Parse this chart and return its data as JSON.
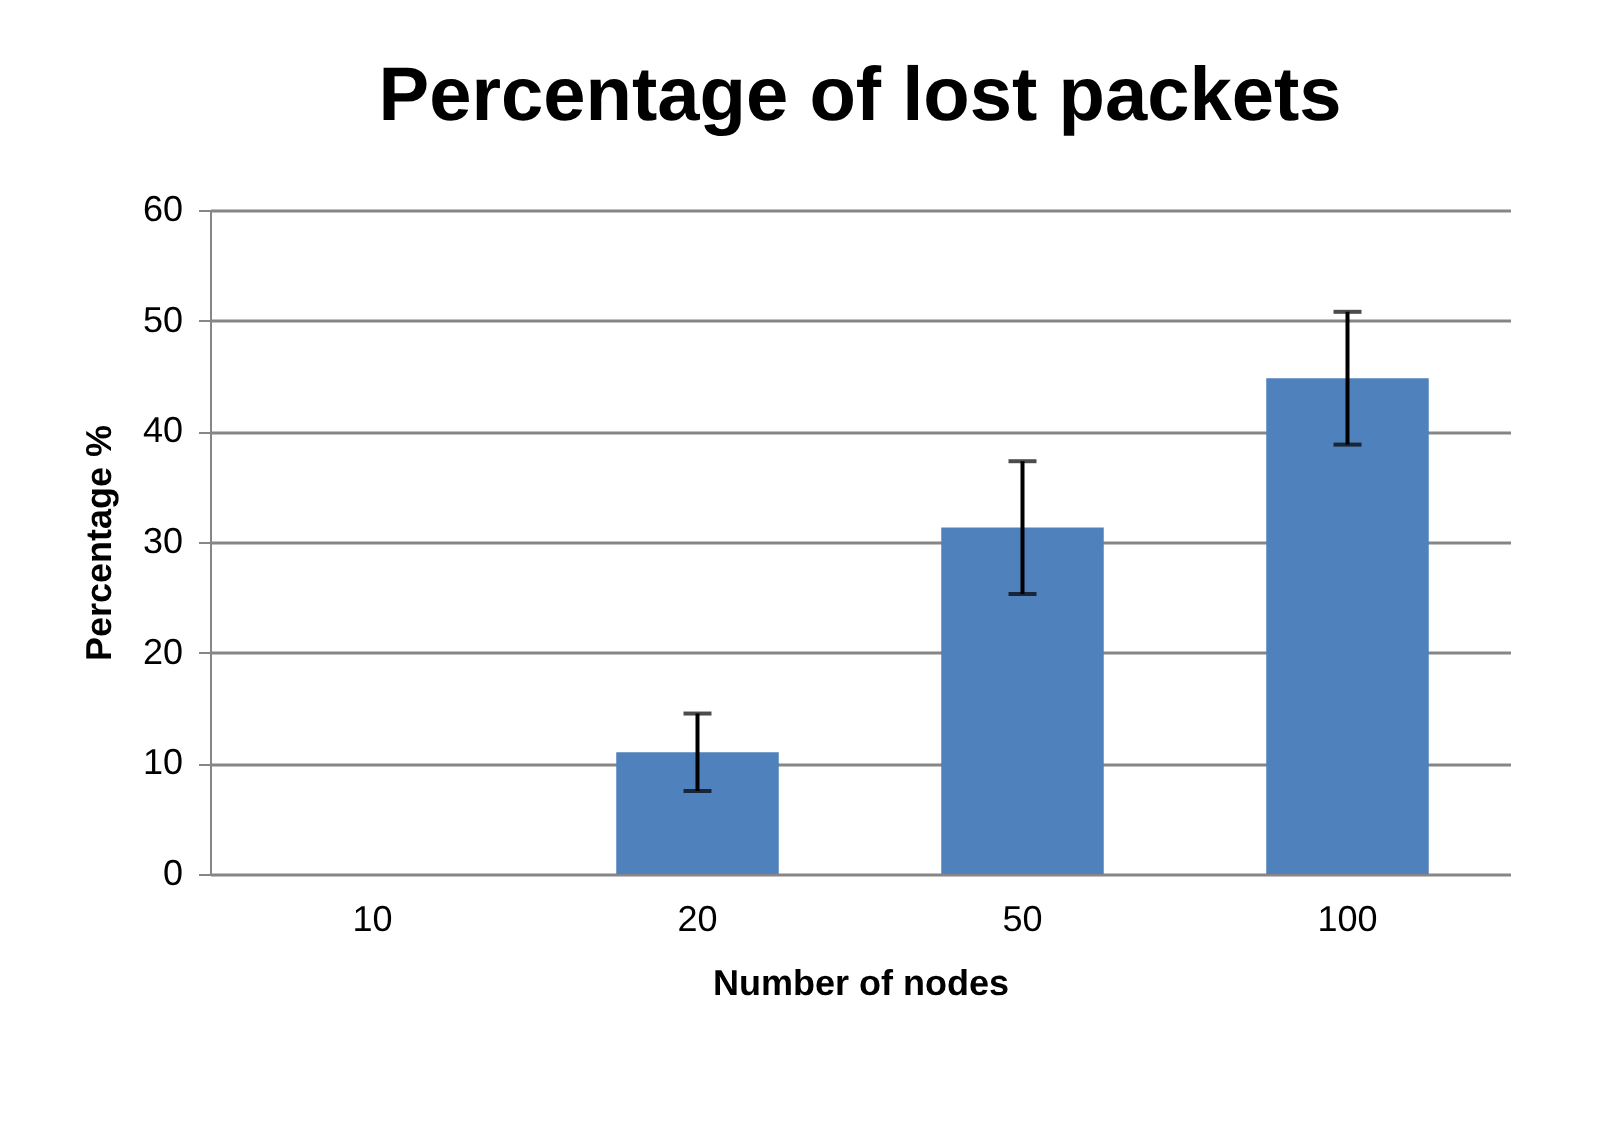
{
  "chart_data": {
    "type": "bar",
    "title": "Percentage of lost packets",
    "xlabel": "Number of nodes",
    "ylabel": "Percentage %",
    "categories": [
      "10",
      "20",
      "50",
      "100"
    ],
    "values": [
      0,
      11.0,
      31.3,
      44.8
    ],
    "errors": [
      null,
      3.5,
      6,
      6
    ],
    "color": "#4f81bd",
    "ylim": [
      0,
      60
    ],
    "yticks": [
      0,
      10,
      20,
      30,
      40,
      50,
      60
    ],
    "grid": "y"
  }
}
